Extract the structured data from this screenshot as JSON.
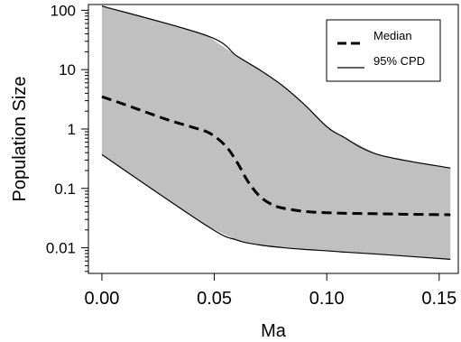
{
  "chart_data": {
    "type": "area",
    "title": "",
    "xlabel": "Ma",
    "ylabel": "Population Size",
    "xlim": [
      -0.006,
      0.1585
    ],
    "ylim": [
      0.0037,
      125
    ],
    "yscale": "log",
    "grid": false,
    "legend_placement": "top-right",
    "x_ticks": [
      0.0,
      0.05,
      0.1,
      0.15
    ],
    "x_tick_labels": [
      "0.00",
      "0.05",
      "0.10",
      "0.15"
    ],
    "y_ticks": [
      0.01,
      0.1,
      1,
      10,
      100
    ],
    "y_tick_labels": [
      "0.01",
      "0.1",
      "1",
      "10",
      "100"
    ],
    "legend": {
      "median_label": "Median",
      "cpd_label": "95% CPD"
    },
    "band_color": "#c0c0c0",
    "line_color": "#000000",
    "series": [
      {
        "name": "Median",
        "style": "dashed",
        "x": [
          0.0,
          0.01,
          0.02,
          0.03,
          0.04,
          0.048,
          0.055,
          0.06,
          0.065,
          0.07,
          0.075,
          0.08,
          0.09,
          0.1,
          0.11,
          0.12,
          0.13,
          0.14,
          0.155
        ],
        "y": [
          3.5,
          2.6,
          1.9,
          1.4,
          1.08,
          0.85,
          0.52,
          0.28,
          0.13,
          0.075,
          0.055,
          0.047,
          0.041,
          0.039,
          0.038,
          0.0375,
          0.037,
          0.0365,
          0.036
        ]
      },
      {
        "name": "95% CPD",
        "style": "solid",
        "x": [
          0.0,
          0.047,
          0.06,
          0.07,
          0.08,
          0.09,
          0.1,
          0.107,
          0.123,
          0.155
        ],
        "upper": [
          118,
          37,
          17,
          10,
          5.5,
          2.6,
          1.1,
          0.75,
          0.37,
          0.22
        ],
        "lower": [
          0.37,
          0.023,
          0.0135,
          0.0112,
          0.0101,
          0.0094,
          0.0089,
          0.0085,
          0.0078,
          0.0064
        ]
      }
    ]
  }
}
